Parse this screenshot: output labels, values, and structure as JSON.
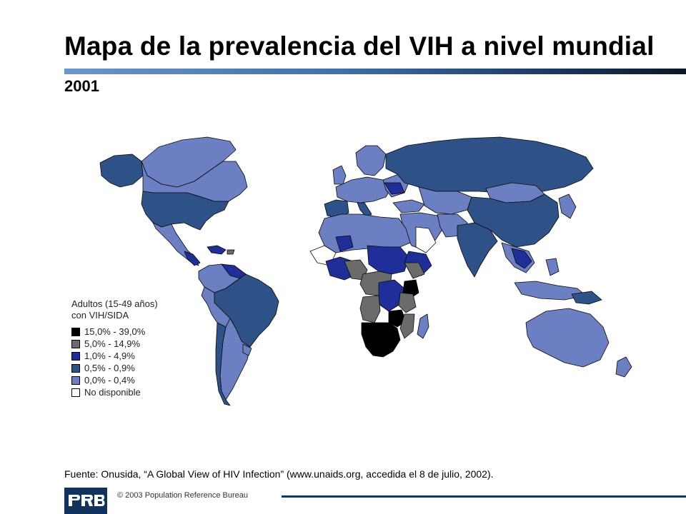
{
  "header": {
    "title": "Mapa de la prevalencia del VIH a nivel mundial",
    "subtitle": "2001"
  },
  "legend": {
    "title": "Adultos (15-49 años)\ncon VIH/SIDA",
    "items": [
      {
        "label": "15,0% - 39,0%",
        "color": "#000000"
      },
      {
        "label": "5,0% - 14,9%",
        "color": "#6b6b6b"
      },
      {
        "label": "1,0% - 4,9%",
        "color": "#1f2e99"
      },
      {
        "label": "0,5% - 0,9%",
        "color": "#2e5287"
      },
      {
        "label": "0,0% - 0,4%",
        "color": "#6b7fc2"
      },
      {
        "label": "No disponible",
        "color": "#ffffff"
      }
    ]
  },
  "footer": {
    "source": "Fuente:  Onusida, “A Global View of HIV Infection” (www.unaids.org, accedida el 8 de julio, 2002).",
    "logo_text": "PRB",
    "copyright": "© 2003  Population Reference Bureau"
  }
}
